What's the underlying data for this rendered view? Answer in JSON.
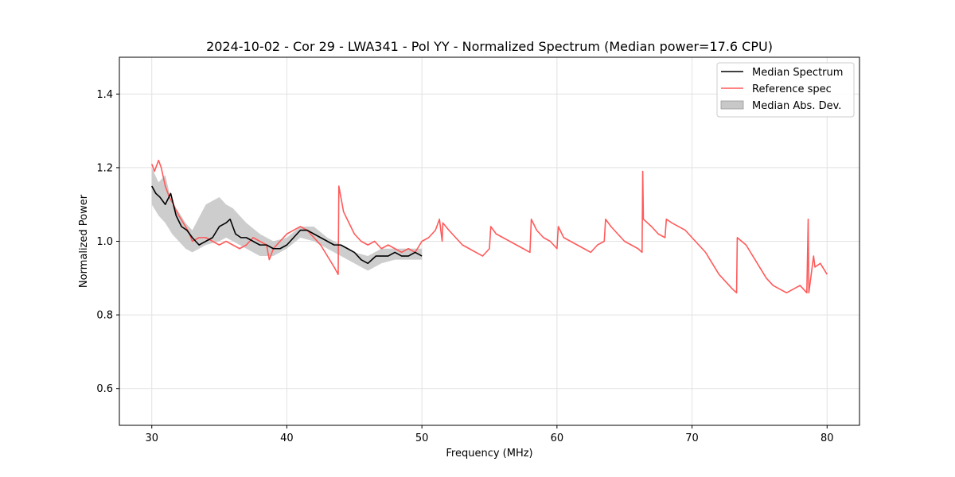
{
  "chart_data": {
    "type": "line",
    "title": "2024-10-02 - Cor 29 - LWA341 - Pol YY - Normalized Spectrum (Median power=17.6 CPU)",
    "xlabel": "Frequency (MHz)",
    "ylabel": "Normalized Power",
    "xlim": [
      27.6,
      82.4
    ],
    "ylim": [
      0.5,
      1.5
    ],
    "xticks": [
      30,
      40,
      50,
      60,
      70,
      80
    ],
    "yticks": [
      0.6,
      0.8,
      1.0,
      1.2,
      1.4
    ],
    "grid": true,
    "legend_position": "upper-right",
    "legend": [
      {
        "label": "Median Spectrum",
        "kind": "line",
        "color": "#000000"
      },
      {
        "label": "Reference spec",
        "kind": "line",
        "color": "#ff5a5a"
      },
      {
        "label": "Median Abs. Dev.",
        "kind": "patch",
        "color": "#c8c8c8"
      }
    ],
    "series": [
      {
        "name": "Median Abs. Dev.",
        "kind": "band",
        "color": "#c8c8c8",
        "x": [
          30.0,
          30.5,
          31.0,
          31.5,
          32.0,
          32.5,
          33.0,
          34.0,
          35.0,
          35.5,
          36.0,
          37.0,
          38.0,
          39.0,
          40.0,
          41.0,
          42.0,
          43.0,
          44.0,
          45.0,
          46.0,
          47.0,
          48.0,
          49.0,
          50.0
        ],
        "lower": [
          1.1,
          1.07,
          1.05,
          1.02,
          1.0,
          0.98,
          0.97,
          0.99,
          1.0,
          1.01,
          1.0,
          0.98,
          0.96,
          0.96,
          0.98,
          1.01,
          1.0,
          0.98,
          0.96,
          0.94,
          0.92,
          0.94,
          0.95,
          0.95,
          0.95
        ],
        "upper": [
          1.2,
          1.16,
          1.18,
          1.1,
          1.08,
          1.05,
          1.03,
          1.1,
          1.12,
          1.1,
          1.09,
          1.05,
          1.02,
          1.0,
          1.01,
          1.04,
          1.04,
          1.01,
          0.99,
          0.97,
          0.96,
          0.98,
          0.98,
          0.98,
          0.98
        ]
      },
      {
        "name": "Median Spectrum",
        "kind": "line",
        "color": "#000000",
        "x": [
          30.0,
          30.3,
          30.6,
          31.0,
          31.4,
          31.8,
          32.2,
          32.6,
          33.0,
          33.5,
          34.0,
          34.5,
          35.0,
          35.5,
          35.8,
          36.2,
          36.6,
          37.0,
          37.5,
          38.0,
          38.5,
          39.0,
          39.5,
          40.0,
          40.5,
          41.0,
          41.5,
          42.0,
          42.5,
          43.0,
          43.5,
          44.0,
          44.5,
          45.0,
          45.5,
          46.0,
          46.3,
          46.6,
          47.0,
          47.5,
          48.0,
          48.5,
          49.0,
          49.5,
          50.0
        ],
        "y": [
          1.15,
          1.13,
          1.12,
          1.1,
          1.13,
          1.07,
          1.04,
          1.03,
          1.01,
          0.99,
          1.0,
          1.01,
          1.04,
          1.05,
          1.06,
          1.02,
          1.01,
          1.01,
          1.0,
          0.99,
          0.99,
          0.98,
          0.98,
          0.99,
          1.01,
          1.03,
          1.03,
          1.02,
          1.01,
          1.0,
          0.99,
          0.99,
          0.98,
          0.97,
          0.95,
          0.94,
          0.95,
          0.96,
          0.96,
          0.96,
          0.97,
          0.96,
          0.96,
          0.97,
          0.96
        ]
      },
      {
        "name": "Reference spec",
        "kind": "line",
        "color": "#ff5a5a",
        "x": [
          30.0,
          30.2,
          30.5,
          30.7,
          31.0,
          31.3,
          31.6,
          32.0,
          32.5,
          32.8,
          33.0,
          33.5,
          34.0,
          34.5,
          35.0,
          35.5,
          36.0,
          36.5,
          37.0,
          37.5,
          38.0,
          38.5,
          38.7,
          39.0,
          39.5,
          40.0,
          40.5,
          41.0,
          41.5,
          42.0,
          42.5,
          43.0,
          43.5,
          43.8,
          43.85,
          44.2,
          44.6,
          45.0,
          45.5,
          46.0,
          46.5,
          47.0,
          47.5,
          48.0,
          48.5,
          49.0,
          49.5,
          50.0,
          50.5,
          51.0,
          51.3,
          51.5,
          51.55,
          52.0,
          52.5,
          53.0,
          53.5,
          54.0,
          54.5,
          55.0,
          55.1,
          55.5,
          56.0,
          56.5,
          57.0,
          57.5,
          58.0,
          58.1,
          58.5,
          59.0,
          59.5,
          60.0,
          60.1,
          60.5,
          61.0,
          61.5,
          62.0,
          62.5,
          63.0,
          63.5,
          63.6,
          64.0,
          64.5,
          65.0,
          65.5,
          66.0,
          66.3,
          66.35,
          66.4,
          67.0,
          67.5,
          68.0,
          68.1,
          68.5,
          69.0,
          69.5,
          70.0,
          70.5,
          71.0,
          71.5,
          72.0,
          72.5,
          73.0,
          73.3,
          73.35,
          74.0,
          74.5,
          75.0,
          75.5,
          76.0,
          76.5,
          77.0,
          77.5,
          78.0,
          78.5,
          78.6,
          78.65,
          79.0,
          79.1,
          79.5,
          80.0
        ],
        "y": [
          1.21,
          1.19,
          1.22,
          1.2,
          1.15,
          1.12,
          1.1,
          1.07,
          1.04,
          1.02,
          1.0,
          1.01,
          1.01,
          1.0,
          0.99,
          1.0,
          0.99,
          0.98,
          0.99,
          1.01,
          1.0,
          0.99,
          0.95,
          0.98,
          1.0,
          1.02,
          1.03,
          1.04,
          1.03,
          1.01,
          0.99,
          0.96,
          0.93,
          0.91,
          1.15,
          1.08,
          1.05,
          1.02,
          1.0,
          0.99,
          1.0,
          0.98,
          0.99,
          0.98,
          0.97,
          0.98,
          0.97,
          1.0,
          1.01,
          1.03,
          1.06,
          1.0,
          1.05,
          1.03,
          1.01,
          0.99,
          0.98,
          0.97,
          0.96,
          0.98,
          1.04,
          1.02,
          1.01,
          1.0,
          0.99,
          0.98,
          0.97,
          1.06,
          1.03,
          1.01,
          1.0,
          0.98,
          1.04,
          1.01,
          1.0,
          0.99,
          0.98,
          0.97,
          0.99,
          1.0,
          1.06,
          1.04,
          1.02,
          1.0,
          0.99,
          0.98,
          0.97,
          1.19,
          1.06,
          1.04,
          1.02,
          1.01,
          1.06,
          1.05,
          1.04,
          1.03,
          1.01,
          0.99,
          0.97,
          0.94,
          0.91,
          0.89,
          0.87,
          0.86,
          1.01,
          0.99,
          0.96,
          0.93,
          0.9,
          0.88,
          0.87,
          0.86,
          0.87,
          0.88,
          0.86,
          1.06,
          0.86,
          0.96,
          0.93,
          0.94,
          0.91
        ]
      }
    ]
  }
}
